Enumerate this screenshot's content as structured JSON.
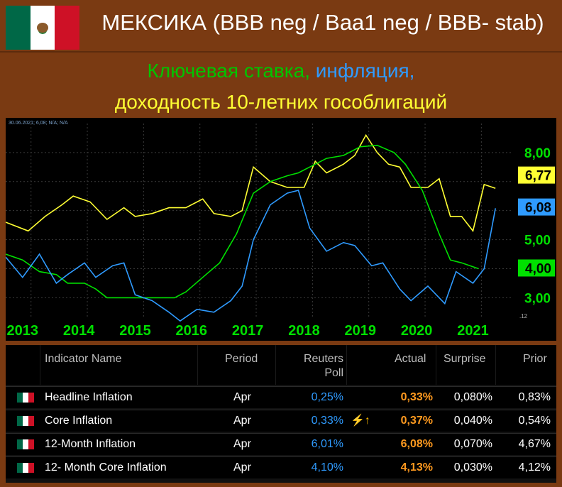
{
  "header": {
    "country_title": "МЕКСИКА (BBB neg / Baa1 neg / BBB- stab)"
  },
  "subtitle": {
    "line1_part1": "Ключевая ставка, ",
    "line1_part2": "инфляция,",
    "line2": "доходность 10-летних гособлигаций"
  },
  "chart_legend_text": "30.06.2021; 6,08; N/A; N/A",
  "chart_data": {
    "type": "line",
    "x": [
      "2013",
      "2014",
      "2015",
      "2016",
      "2017",
      "2018",
      "2019",
      "2020",
      "2021"
    ],
    "ylim": [
      2.3,
      9.0
    ],
    "y_ticks": [
      "8,00",
      "5,00",
      "4,00",
      "3,00"
    ],
    "last_value_labels": [
      {
        "series": "yield",
        "text": "6,77",
        "color": "#ffff33"
      },
      {
        "series": "inflation",
        "text": "6,08",
        "color": "#2f9bff"
      },
      {
        "series": "policy_rate",
        "text": "4,00",
        "color": "#00e000"
      }
    ],
    "axis_small_label": ".12",
    "series": [
      {
        "key": "yield",
        "color": "#ffff33",
        "values": [
          [
            2012.9,
            5.6
          ],
          [
            2013.3,
            5.3
          ],
          [
            2013.6,
            5.8
          ],
          [
            2013.9,
            6.2
          ],
          [
            2014.1,
            6.5
          ],
          [
            2014.4,
            6.3
          ],
          [
            2014.7,
            5.7
          ],
          [
            2015.0,
            6.1
          ],
          [
            2015.2,
            5.8
          ],
          [
            2015.5,
            5.9
          ],
          [
            2015.8,
            6.1
          ],
          [
            2016.1,
            6.1
          ],
          [
            2016.4,
            6.4
          ],
          [
            2016.6,
            5.9
          ],
          [
            2016.9,
            5.8
          ],
          [
            2017.1,
            6.0
          ],
          [
            2017.3,
            7.5
          ],
          [
            2017.6,
            7.0
          ],
          [
            2017.9,
            6.8
          ],
          [
            2018.2,
            6.8
          ],
          [
            2018.4,
            7.7
          ],
          [
            2018.6,
            7.3
          ],
          [
            2018.9,
            7.6
          ],
          [
            2019.1,
            7.9
          ],
          [
            2019.3,
            8.6
          ],
          [
            2019.5,
            8.0
          ],
          [
            2019.7,
            7.6
          ],
          [
            2019.9,
            7.5
          ],
          [
            2020.1,
            6.8
          ],
          [
            2020.4,
            6.8
          ],
          [
            2020.6,
            7.1
          ],
          [
            2020.8,
            5.8
          ],
          [
            2021.0,
            5.8
          ],
          [
            2021.2,
            5.3
          ],
          [
            2021.4,
            6.9
          ],
          [
            2021.6,
            6.77
          ]
        ]
      },
      {
        "key": "policy_rate",
        "color": "#00e000",
        "values": [
          [
            2012.9,
            4.5
          ],
          [
            2013.2,
            4.3
          ],
          [
            2013.5,
            3.9
          ],
          [
            2013.8,
            3.8
          ],
          [
            2014.0,
            3.5
          ],
          [
            2014.3,
            3.5
          ],
          [
            2014.5,
            3.3
          ],
          [
            2014.7,
            3.0
          ],
          [
            2015.0,
            3.0
          ],
          [
            2015.3,
            3.0
          ],
          [
            2015.6,
            3.0
          ],
          [
            2015.9,
            3.0
          ],
          [
            2016.1,
            3.2
          ],
          [
            2016.4,
            3.7
          ],
          [
            2016.7,
            4.2
          ],
          [
            2017.0,
            5.2
          ],
          [
            2017.3,
            6.6
          ],
          [
            2017.6,
            7.0
          ],
          [
            2017.9,
            7.2
          ],
          [
            2018.1,
            7.3
          ],
          [
            2018.3,
            7.5
          ],
          [
            2018.6,
            7.8
          ],
          [
            2018.9,
            7.9
          ],
          [
            2019.2,
            8.2
          ],
          [
            2019.5,
            8.25
          ],
          [
            2019.8,
            8.0
          ],
          [
            2020.0,
            7.6
          ],
          [
            2020.3,
            6.7
          ],
          [
            2020.6,
            5.2
          ],
          [
            2020.8,
            4.3
          ],
          [
            2021.0,
            4.2
          ],
          [
            2021.3,
            4.0
          ]
        ]
      },
      {
        "key": "inflation",
        "color": "#2f9bff",
        "values": [
          [
            2012.9,
            4.4
          ],
          [
            2013.2,
            3.7
          ],
          [
            2013.5,
            4.5
          ],
          [
            2013.8,
            3.5
          ],
          [
            2014.0,
            3.8
          ],
          [
            2014.3,
            4.2
          ],
          [
            2014.5,
            3.7
          ],
          [
            2014.8,
            4.1
          ],
          [
            2015.0,
            4.2
          ],
          [
            2015.2,
            3.1
          ],
          [
            2015.5,
            2.9
          ],
          [
            2015.8,
            2.5
          ],
          [
            2016.0,
            2.2
          ],
          [
            2016.3,
            2.6
          ],
          [
            2016.6,
            2.5
          ],
          [
            2016.9,
            2.9
          ],
          [
            2017.1,
            3.4
          ],
          [
            2017.3,
            5.0
          ],
          [
            2017.6,
            6.2
          ],
          [
            2017.9,
            6.6
          ],
          [
            2018.1,
            6.7
          ],
          [
            2018.3,
            5.4
          ],
          [
            2018.6,
            4.6
          ],
          [
            2018.9,
            4.9
          ],
          [
            2019.1,
            4.8
          ],
          [
            2019.4,
            4.1
          ],
          [
            2019.6,
            4.2
          ],
          [
            2019.9,
            3.3
          ],
          [
            2020.1,
            2.9
          ],
          [
            2020.4,
            3.4
          ],
          [
            2020.7,
            2.8
          ],
          [
            2020.9,
            3.9
          ],
          [
            2021.2,
            3.5
          ],
          [
            2021.4,
            4.0
          ],
          [
            2021.6,
            6.08
          ]
        ]
      }
    ]
  },
  "table": {
    "headers": {
      "indicator": "Indicator Name",
      "period": "Period",
      "poll1": "Reuters",
      "poll2": "Poll",
      "actual": "Actual",
      "surprise": "Surprise",
      "prior": "Prior"
    },
    "rows": [
      {
        "name": "Headline Inflation",
        "period": "Apr",
        "poll": "0,25%",
        "actual": "0,33%",
        "surprise": "0,080%",
        "prior": "0,83%"
      },
      {
        "name": "Core Inflation",
        "period": "Apr",
        "poll": "0,33%",
        "actual": "0,37%",
        "surprise": "0,040%",
        "prior": "0,54%",
        "badge": "⚡↑"
      },
      {
        "name": "12-Month Inflation",
        "period": "Apr",
        "poll": "6,01%",
        "actual": "6,08%",
        "surprise": "0,070%",
        "prior": "4,67%"
      },
      {
        "name": "12- Month Core Inflation",
        "period": "Apr",
        "poll": "4,10%",
        "actual": "4,13%",
        "surprise": "0,030%",
        "prior": "4,12%"
      }
    ]
  }
}
